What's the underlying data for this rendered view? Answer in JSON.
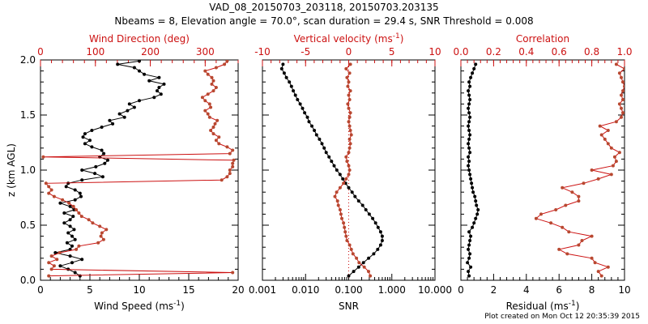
{
  "header": {
    "title": "VAD_08_20150703_203118, 20150703.203135",
    "subtitle": "Nbeams = 8, Elevation angle = 70.0°, scan duration = 29.4 s, SNR Threshold = 0.008"
  },
  "footer": {
    "timestamp": "Plot created on Mon Oct 12 20:35:39 2015"
  },
  "colors": {
    "black": "#000000",
    "red": "#cc1111",
    "rust": "#b84830"
  },
  "chart_data": [
    {
      "type": "line",
      "name": "wind",
      "ylabel": "z (km AGL)",
      "ylim": [
        0,
        2
      ],
      "yticks": [
        "0.0",
        "0.5",
        "1.0",
        "1.5",
        "2.0"
      ],
      "bottom_axis": {
        "label": "Wind Speed (ms",
        "label_sup": "-1",
        "label_end": ")",
        "range": [
          0,
          20
        ],
        "ticks": [
          "0",
          "5",
          "10",
          "15",
          "20"
        ]
      },
      "top_axis": {
        "label": "Wind Direction (deg)",
        "range": [
          0,
          360
        ],
        "ticks": [
          "0",
          "100",
          "200",
          "300"
        ]
      },
      "series": [
        {
          "name": "Wind Speed",
          "axis": "bottom",
          "color": "#000000",
          "z": [
            0.04,
            0.07,
            0.1,
            0.13,
            0.16,
            0.19,
            0.22,
            0.25,
            0.28,
            0.31,
            0.34,
            0.37,
            0.4,
            0.43,
            0.46,
            0.49,
            0.52,
            0.55,
            0.58,
            0.61,
            0.64,
            0.67,
            0.7,
            0.73,
            0.76,
            0.79,
            0.82,
            0.85,
            0.88,
            0.91,
            0.94,
            0.97,
            1.0,
            1.03,
            1.06,
            1.09,
            1.12,
            1.15,
            1.18,
            1.21,
            1.24,
            1.27,
            1.3,
            1.33,
            1.36,
            1.39,
            1.42,
            1.45,
            1.48,
            1.51,
            1.54,
            1.57,
            1.6,
            1.63,
            1.66,
            1.69,
            1.72,
            1.75,
            1.78,
            1.81,
            1.84,
            1.87,
            1.9,
            1.93,
            1.96,
            1.99
          ],
          "values": [
            4.0,
            3.5,
            2.8,
            2.0,
            3.2,
            4.2,
            3.0,
            1.5,
            3.0,
            3.2,
            2.7,
            3.5,
            3.2,
            2.8,
            3.4,
            3.0,
            2.4,
            3.0,
            3.3,
            2.4,
            3.4,
            3.0,
            2.0,
            3.5,
            4.1,
            4.0,
            3.5,
            2.6,
            2.8,
            4.2,
            6.3,
            5.5,
            4.2,
            5.6,
            6.5,
            6.8,
            6.0,
            6.4,
            6.2,
            5.2,
            4.5,
            5.0,
            4.3,
            4.5,
            5.2,
            6.2,
            7.3,
            7.0,
            8.5,
            8.0,
            8.8,
            9.5,
            9.0,
            10.0,
            11.5,
            12.2,
            11.8,
            12.0,
            12.5,
            11.0,
            12.0,
            10.5,
            10.0,
            9.5,
            7.8,
            10.0
          ]
        },
        {
          "name": "Wind Direction",
          "axis": "top",
          "color": "#b84830",
          "z": [
            0.04,
            0.07,
            0.1,
            0.13,
            0.16,
            0.19,
            0.22,
            0.25,
            0.28,
            0.31,
            0.34,
            0.37,
            0.4,
            0.43,
            0.46,
            0.49,
            0.52,
            0.55,
            0.58,
            0.61,
            0.64,
            0.67,
            0.7,
            0.73,
            0.76,
            0.79,
            0.82,
            0.85,
            0.88,
            0.91,
            0.94,
            0.97,
            1.0,
            1.03,
            1.06,
            1.09,
            1.12,
            1.15,
            1.18,
            1.21,
            1.24,
            1.27,
            1.3,
            1.33,
            1.36,
            1.39,
            1.42,
            1.45,
            1.48,
            1.51,
            1.54,
            1.57,
            1.6,
            1.63,
            1.66,
            1.69,
            1.72,
            1.75,
            1.78,
            1.81,
            1.84,
            1.87,
            1.9,
            1.93,
            1.96,
            1.99
          ],
          "values": [
            15,
            350,
            20,
            25,
            15,
            30,
            20,
            35,
            65,
            70,
            105,
            115,
            110,
            112,
            120,
            108,
            95,
            88,
            75,
            70,
            65,
            60,
            52,
            40,
            25,
            15,
            20,
            15,
            10,
            330,
            340,
            345,
            345,
            350,
            350,
            352,
            5,
            345,
            350,
            340,
            325,
            320,
            325,
            315,
            310,
            315,
            318,
            322,
            308,
            305,
            300,
            310,
            308,
            300,
            295,
            305,
            315,
            320,
            312,
            315,
            312,
            305,
            300,
            320,
            335,
            340
          ]
        }
      ]
    },
    {
      "type": "line",
      "name": "snr-vv",
      "ylim": [
        0,
        2
      ],
      "bottom_axis": {
        "label": "SNR",
        "scale": "log",
        "range": [
          0.001,
          10
        ],
        "ticks": [
          "0.001",
          "0.010",
          "0.100",
          "1.000",
          "10.000"
        ]
      },
      "top_axis": {
        "label": "Vertical velocity (ms",
        "label_sup": "-1",
        "label_end": ")",
        "range": [
          -10,
          10
        ],
        "ticks": [
          "-10",
          "-5",
          "0",
          "5",
          "10"
        ]
      },
      "series": [
        {
          "name": "SNR",
          "axis": "bottom",
          "color": "#000000",
          "z": [
            0.04,
            0.08,
            0.12,
            0.16,
            0.2,
            0.24,
            0.28,
            0.32,
            0.36,
            0.4,
            0.44,
            0.48,
            0.52,
            0.56,
            0.6,
            0.64,
            0.68,
            0.72,
            0.76,
            0.8,
            0.84,
            0.88,
            0.92,
            0.96,
            1.0,
            1.04,
            1.08,
            1.12,
            1.16,
            1.2,
            1.24,
            1.28,
            1.32,
            1.36,
            1.4,
            1.44,
            1.48,
            1.52,
            1.56,
            1.6,
            1.64,
            1.68,
            1.72,
            1.76,
            1.8,
            1.84,
            1.88,
            1.92,
            1.96
          ],
          "values": [
            0.1,
            0.13,
            0.17,
            0.22,
            0.29,
            0.38,
            0.47,
            0.55,
            0.6,
            0.6,
            0.55,
            0.48,
            0.42,
            0.36,
            0.3,
            0.25,
            0.21,
            0.17,
            0.14,
            0.12,
            0.1,
            0.085,
            0.073,
            0.063,
            0.053,
            0.046,
            0.04,
            0.035,
            0.03,
            0.027,
            0.024,
            0.021,
            0.018,
            0.016,
            0.014,
            0.012,
            0.011,
            0.0095,
            0.0085,
            0.0075,
            0.0065,
            0.0058,
            0.0052,
            0.0047,
            0.0042,
            0.0036,
            0.0032,
            0.0028,
            0.003
          ]
        },
        {
          "name": "Vertical velocity",
          "axis": "top",
          "color": "#b84830",
          "z": [
            0.04,
            0.08,
            0.12,
            0.16,
            0.2,
            0.24,
            0.28,
            0.32,
            0.36,
            0.4,
            0.44,
            0.48,
            0.52,
            0.56,
            0.6,
            0.64,
            0.68,
            0.72,
            0.76,
            0.8,
            0.84,
            0.88,
            0.92,
            0.96,
            1.0,
            1.04,
            1.08,
            1.12,
            1.16,
            1.2,
            1.24,
            1.28,
            1.32,
            1.36,
            1.4,
            1.44,
            1.48,
            1.52,
            1.56,
            1.6,
            1.64,
            1.68,
            1.72,
            1.76,
            1.8,
            1.84,
            1.88,
            1.92,
            1.96
          ],
          "values": [
            2.5,
            2.3,
            1.8,
            1.2,
            0.9,
            0.5,
            0.3,
            0.1,
            -0.2,
            -0.3,
            -0.4,
            -0.5,
            -0.6,
            -0.8,
            -0.9,
            -1.0,
            -1.2,
            -1.3,
            -1.6,
            -1.4,
            -1.0,
            -0.6,
            -0.3,
            0.0,
            0.1,
            0.0,
            -0.2,
            -0.3,
            0.0,
            0.1,
            0.2,
            0.1,
            0.3,
            0.2,
            0.1,
            0.0,
            0.1,
            0.2,
            0.0,
            -0.1,
            0.1,
            0.0,
            0.2,
            -0.1,
            0.0,
            -0.2,
            0.1,
            -0.3,
            0.2
          ]
        }
      ]
    },
    {
      "type": "line",
      "name": "residual-correlation",
      "ylim": [
        0,
        2
      ],
      "bottom_axis": {
        "label": "Residual (ms",
        "label_sup": "-1",
        "label_end": ")",
        "range": [
          0,
          10
        ],
        "ticks": [
          "0",
          "2",
          "4",
          "6",
          "8",
          "10"
        ]
      },
      "top_axis": {
        "label": "Correlation",
        "range": [
          0,
          1
        ],
        "ticks": [
          "0.0",
          "0.2",
          "0.4",
          "0.6",
          "0.8",
          "1.0"
        ]
      },
      "series": [
        {
          "name": "Residual",
          "axis": "bottom",
          "color": "#000000",
          "z": [
            0.04,
            0.08,
            0.12,
            0.16,
            0.2,
            0.24,
            0.28,
            0.32,
            0.36,
            0.4,
            0.44,
            0.48,
            0.52,
            0.56,
            0.6,
            0.64,
            0.68,
            0.72,
            0.76,
            0.8,
            0.84,
            0.88,
            0.92,
            0.96,
            1.0,
            1.04,
            1.08,
            1.12,
            1.16,
            1.2,
            1.24,
            1.28,
            1.32,
            1.36,
            1.4,
            1.44,
            1.48,
            1.52,
            1.56,
            1.6,
            1.64,
            1.68,
            1.72,
            1.76,
            1.8,
            1.84,
            1.88,
            1.92,
            1.96
          ],
          "values": [
            0.5,
            0.45,
            0.6,
            0.4,
            0.5,
            0.55,
            0.45,
            0.5,
            0.55,
            0.6,
            0.5,
            0.7,
            0.8,
            0.9,
            1.0,
            1.05,
            0.95,
            0.9,
            0.85,
            0.75,
            0.7,
            0.65,
            0.6,
            0.55,
            0.5,
            0.45,
            0.5,
            0.45,
            0.55,
            0.5,
            0.45,
            0.5,
            0.55,
            0.5,
            0.45,
            0.5,
            0.55,
            0.5,
            0.45,
            0.5,
            0.55,
            0.5,
            0.45,
            0.55,
            0.5,
            0.6,
            0.7,
            0.8,
            0.9
          ]
        },
        {
          "name": "Correlation",
          "axis": "top",
          "color": "#b84830",
          "z": [
            0.04,
            0.08,
            0.12,
            0.16,
            0.2,
            0.24,
            0.28,
            0.32,
            0.36,
            0.4,
            0.44,
            0.48,
            0.52,
            0.56,
            0.6,
            0.64,
            0.68,
            0.72,
            0.76,
            0.8,
            0.84,
            0.88,
            0.92,
            0.96,
            1.0,
            1.04,
            1.08,
            1.12,
            1.16,
            1.2,
            1.24,
            1.28,
            1.32,
            1.36,
            1.4,
            1.44,
            1.48,
            1.52,
            1.56,
            1.6,
            1.64,
            1.68,
            1.72,
            1.76,
            1.8,
            1.84,
            1.88,
            1.92,
            1.96
          ],
          "values": [
            0.86,
            0.84,
            0.9,
            0.82,
            0.8,
            0.65,
            0.6,
            0.72,
            0.74,
            0.8,
            0.66,
            0.62,
            0.55,
            0.46,
            0.49,
            0.58,
            0.64,
            0.72,
            0.72,
            0.68,
            0.62,
            0.75,
            0.84,
            0.92,
            0.8,
            0.93,
            0.95,
            0.94,
            0.97,
            0.92,
            0.9,
            0.88,
            0.86,
            0.9,
            0.85,
            0.95,
            0.98,
            0.99,
            0.98,
            0.97,
            0.99,
            0.98,
            0.99,
            1.0,
            0.99,
            0.98,
            0.97,
            1.0,
            0.95
          ]
        }
      ]
    }
  ]
}
